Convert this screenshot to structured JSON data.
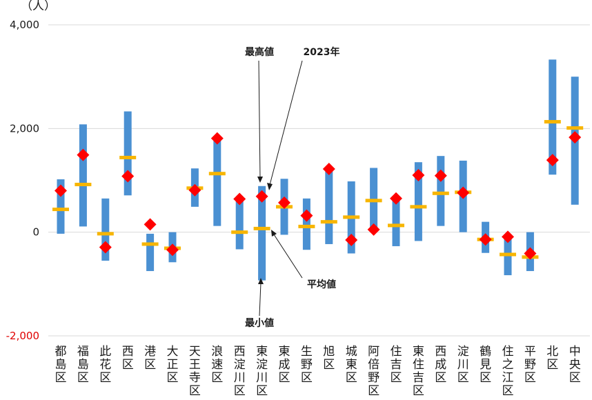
{
  "chart_data": {
    "type": "range-bar",
    "unit_label": "（人）",
    "y_ticks": [
      "4,000",
      "2,000",
      "0",
      "-2,000"
    ],
    "y_tick_values": [
      4000,
      2000,
      0,
      -2000
    ],
    "ylim": [
      -2000,
      4000
    ],
    "grid": true,
    "categories": [
      "都島区",
      "福島区",
      "此花区",
      "西区",
      "港区",
      "大正区",
      "天王寺区",
      "浪速区",
      "西淀川区",
      "東淀川区",
      "東成区",
      "生野区",
      "旭区",
      "城東区",
      "阿倍野区",
      "住吉区",
      "東住吉区",
      "西成区",
      "淀川区",
      "鶴見区",
      "住之江区",
      "平野区",
      "北区",
      "中央区"
    ],
    "series": [
      {
        "name": "最高値",
        "values": [
          1020,
          2080,
          650,
          2330,
          -30,
          0,
          1230,
          1800,
          640,
          890,
          1030,
          650,
          1220,
          980,
          1240,
          650,
          1350,
          1470,
          1380,
          200,
          -100,
          0,
          3330,
          3000
        ]
      },
      {
        "name": "最小値",
        "values": [
          -30,
          110,
          -550,
          710,
          -750,
          -580,
          490,
          120,
          -330,
          -930,
          -50,
          -340,
          -230,
          -410,
          30,
          -270,
          -170,
          120,
          0,
          -400,
          -830,
          -750,
          1110,
          530
        ]
      },
      {
        "name": "平均値",
        "values": [
          440,
          920,
          -30,
          1440,
          -230,
          -310,
          850,
          1130,
          0,
          70,
          490,
          110,
          200,
          290,
          610,
          130,
          490,
          750,
          770,
          -140,
          -430,
          -480,
          2130,
          2010
        ]
      },
      {
        "name": "2023年",
        "values": [
          800,
          1490,
          -290,
          1080,
          150,
          -340,
          810,
          1810,
          640,
          690,
          570,
          320,
          1220,
          -150,
          50,
          650,
          1100,
          1090,
          760,
          -140,
          -90,
          -410,
          1390,
          1830
        ]
      }
    ],
    "annotations": [
      "最高値",
      "2023年",
      "平均値",
      "最小値"
    ],
    "colors": {
      "range_bar": "#4a90d2",
      "average": "#f7b500",
      "latest": "#ff0000",
      "grid": "#d9d9d9",
      "negative_tick": "#e00000"
    }
  }
}
